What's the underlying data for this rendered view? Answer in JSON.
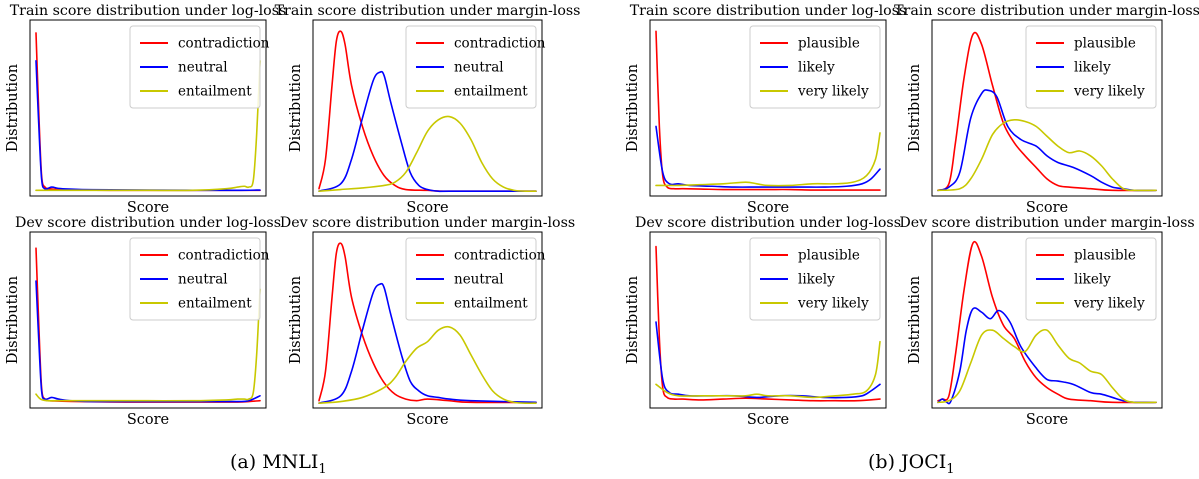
{
  "captions": {
    "a_prefix": "(a)  MNLI",
    "a_sub": "1",
    "b_prefix": "(b)  JOCI",
    "b_sub": "1"
  },
  "chart_data": [
    {
      "id": "mnli-train-log",
      "type": "line",
      "title": "Train score distribution under log-loss",
      "xlabel": "Score",
      "ylabel": "Distribution",
      "grid": false,
      "legend_position": "top-right",
      "xlim": [
        0,
        1
      ],
      "ylim": [
        0,
        1
      ],
      "series": [
        {
          "name": "contradiction",
          "color": "#ff0000",
          "x": [
            0,
            0.012,
            0.025,
            0.04,
            0.06,
            0.1,
            0.2,
            0.4,
            0.6,
            0.8,
            0.9,
            0.95,
            1.0
          ],
          "y": [
            0.97,
            0.5,
            0.1,
            0.03,
            0.02,
            0.015,
            0.012,
            0.01,
            0.01,
            0.01,
            0.01,
            0.01,
            0.01
          ]
        },
        {
          "name": "neutral",
          "color": "#0000ff",
          "x": [
            0,
            0.012,
            0.025,
            0.04,
            0.07,
            0.1,
            0.15,
            0.25,
            0.5,
            0.75,
            0.9,
            1.0
          ],
          "y": [
            0.8,
            0.42,
            0.08,
            0.02,
            0.03,
            0.022,
            0.018,
            0.014,
            0.012,
            0.01,
            0.01,
            0.012
          ]
        },
        {
          "name": "entailment",
          "color": "#c8c800",
          "x": [
            0,
            0.1,
            0.3,
            0.5,
            0.7,
            0.85,
            0.9,
            0.93,
            0.95,
            0.97,
            0.985,
            1.0
          ],
          "y": [
            0.01,
            0.01,
            0.01,
            0.01,
            0.01,
            0.02,
            0.03,
            0.035,
            0.03,
            0.07,
            0.35,
            0.8
          ]
        }
      ]
    },
    {
      "id": "mnli-train-margin",
      "type": "line",
      "title": "Train score distribution under margin-loss",
      "xlabel": "Score",
      "ylabel": "Distribution",
      "grid": false,
      "legend_position": "top-right",
      "xlim": [
        0,
        1
      ],
      "ylim": [
        0,
        1
      ],
      "series": [
        {
          "name": "contradiction",
          "color": "#ff0000",
          "x": [
            0,
            0.03,
            0.06,
            0.08,
            0.1,
            0.12,
            0.15,
            0.2,
            0.25,
            0.3,
            0.35,
            0.4,
            0.5,
            0.6,
            1.0
          ],
          "y": [
            0.02,
            0.2,
            0.65,
            0.92,
            0.98,
            0.9,
            0.65,
            0.4,
            0.22,
            0.1,
            0.04,
            0.015,
            0.01,
            0.005,
            0.005
          ]
        },
        {
          "name": "neutral",
          "color": "#0000ff",
          "x": [
            0,
            0.1,
            0.15,
            0.2,
            0.25,
            0.28,
            0.3,
            0.33,
            0.38,
            0.42,
            0.46,
            0.5,
            0.55,
            0.6,
            1.0
          ],
          "y": [
            0.005,
            0.05,
            0.2,
            0.45,
            0.68,
            0.73,
            0.71,
            0.55,
            0.3,
            0.12,
            0.04,
            0.015,
            0.005,
            0.005,
            0.005
          ]
        },
        {
          "name": "entailment",
          "color": "#c8c800",
          "x": [
            0,
            0.1,
            0.2,
            0.3,
            0.35,
            0.4,
            0.45,
            0.5,
            0.55,
            0.6,
            0.65,
            0.7,
            0.75,
            0.8,
            0.85,
            0.9,
            0.95,
            1.0
          ],
          "y": [
            0.005,
            0.015,
            0.025,
            0.04,
            0.06,
            0.12,
            0.24,
            0.37,
            0.44,
            0.46,
            0.42,
            0.32,
            0.18,
            0.08,
            0.03,
            0.01,
            0.005,
            0.005
          ]
        }
      ]
    },
    {
      "id": "mnli-dev-log",
      "type": "line",
      "title": "Dev score distribution under log-loss",
      "xlabel": "Score",
      "ylabel": "Distribution",
      "grid": false,
      "legend_position": "top-right",
      "xlim": [
        0,
        1
      ],
      "ylim": [
        0,
        1
      ],
      "series": [
        {
          "name": "contradiction",
          "color": "#ff0000",
          "x": [
            0,
            0.012,
            0.025,
            0.04,
            0.06,
            0.1,
            0.2,
            0.4,
            0.6,
            0.8,
            0.9,
            0.95,
            1.0
          ],
          "y": [
            0.95,
            0.5,
            0.1,
            0.03,
            0.02,
            0.018,
            0.015,
            0.012,
            0.012,
            0.012,
            0.012,
            0.015,
            0.02
          ]
        },
        {
          "name": "neutral",
          "color": "#0000ff",
          "x": [
            0,
            0.012,
            0.025,
            0.04,
            0.07,
            0.1,
            0.15,
            0.25,
            0.5,
            0.75,
            0.9,
            0.95,
            1.0
          ],
          "y": [
            0.75,
            0.4,
            0.08,
            0.03,
            0.04,
            0.03,
            0.02,
            0.015,
            0.015,
            0.015,
            0.015,
            0.02,
            0.05
          ]
        },
        {
          "name": "entailment",
          "color": "#c8c800",
          "x": [
            0,
            0.02,
            0.05,
            0.1,
            0.3,
            0.5,
            0.7,
            0.85,
            0.9,
            0.93,
            0.95,
            0.97,
            0.985,
            1.0
          ],
          "y": [
            0.06,
            0.03,
            0.02,
            0.02,
            0.02,
            0.02,
            0.02,
            0.025,
            0.03,
            0.03,
            0.03,
            0.07,
            0.3,
            0.7
          ]
        }
      ]
    },
    {
      "id": "mnli-dev-margin",
      "type": "line",
      "title": "Dev score distribution under margin-loss",
      "xlabel": "Score",
      "ylabel": "Distribution",
      "grid": false,
      "legend_position": "top-right",
      "xlim": [
        0,
        1
      ],
      "ylim": [
        0,
        1
      ],
      "series": [
        {
          "name": "contradiction",
          "color": "#ff0000",
          "x": [
            0,
            0.03,
            0.06,
            0.08,
            0.1,
            0.12,
            0.15,
            0.2,
            0.25,
            0.3,
            0.35,
            0.4,
            0.45,
            0.5,
            0.6,
            0.7,
            1.0
          ],
          "y": [
            0.02,
            0.2,
            0.65,
            0.92,
            0.98,
            0.9,
            0.65,
            0.42,
            0.25,
            0.13,
            0.06,
            0.03,
            0.02,
            0.03,
            0.02,
            0.01,
            0.01
          ]
        },
        {
          "name": "neutral",
          "color": "#0000ff",
          "x": [
            0,
            0.1,
            0.15,
            0.2,
            0.25,
            0.28,
            0.3,
            0.33,
            0.38,
            0.42,
            0.46,
            0.5,
            0.55,
            0.6,
            0.7,
            1.0
          ],
          "y": [
            0.005,
            0.05,
            0.2,
            0.45,
            0.68,
            0.73,
            0.71,
            0.55,
            0.3,
            0.14,
            0.08,
            0.05,
            0.04,
            0.03,
            0.02,
            0.01
          ]
        },
        {
          "name": "entailment",
          "color": "#c8c800",
          "x": [
            0,
            0.1,
            0.2,
            0.3,
            0.35,
            0.4,
            0.45,
            0.5,
            0.55,
            0.6,
            0.65,
            0.7,
            0.75,
            0.8,
            0.85,
            0.9,
            0.95,
            1.0
          ],
          "y": [
            0.005,
            0.015,
            0.04,
            0.1,
            0.16,
            0.26,
            0.34,
            0.38,
            0.45,
            0.47,
            0.42,
            0.3,
            0.18,
            0.08,
            0.03,
            0.01,
            0.005,
            0.005
          ]
        }
      ]
    },
    {
      "id": "joci-train-log",
      "type": "line",
      "title": "Train score distribution under log-loss",
      "xlabel": "Score",
      "ylabel": "Distribution",
      "grid": false,
      "legend_position": "top-right",
      "xlim": [
        0,
        1
      ],
      "ylim": [
        0,
        1
      ],
      "series": [
        {
          "name": "plausible",
          "color": "#ff0000",
          "x": [
            0,
            0.015,
            0.03,
            0.05,
            0.08,
            0.12,
            0.2,
            0.3,
            0.4,
            0.5,
            0.6,
            0.7,
            0.8,
            0.9,
            1.0
          ],
          "y": [
            0.98,
            0.4,
            0.1,
            0.03,
            0.02,
            0.02,
            0.018,
            0.015,
            0.015,
            0.015,
            0.015,
            0.012,
            0.012,
            0.012,
            0.012
          ]
        },
        {
          "name": "likely",
          "color": "#0000ff",
          "x": [
            0,
            0.03,
            0.06,
            0.1,
            0.15,
            0.25,
            0.35,
            0.45,
            0.55,
            0.65,
            0.75,
            0.85,
            0.92,
            0.96,
            1.0
          ],
          "y": [
            0.4,
            0.12,
            0.05,
            0.05,
            0.04,
            0.035,
            0.03,
            0.03,
            0.03,
            0.03,
            0.03,
            0.035,
            0.05,
            0.08,
            0.14
          ]
        },
        {
          "name": "very likely",
          "color": "#c8c800",
          "x": [
            0,
            0.05,
            0.1,
            0.2,
            0.3,
            0.4,
            0.45,
            0.5,
            0.6,
            0.7,
            0.8,
            0.88,
            0.94,
            0.98,
            1.0
          ],
          "y": [
            0.04,
            0.04,
            0.04,
            0.045,
            0.05,
            0.06,
            0.05,
            0.04,
            0.04,
            0.05,
            0.05,
            0.06,
            0.1,
            0.2,
            0.36
          ]
        }
      ]
    },
    {
      "id": "joci-train-margin",
      "type": "line",
      "title": "Train score distribution under margin-loss",
      "xlabel": "Score",
      "ylabel": "Distribution",
      "grid": false,
      "legend_position": "top-right",
      "xlim": [
        0,
        1
      ],
      "ylim": [
        0,
        1
      ],
      "series": [
        {
          "name": "plausible",
          "color": "#ff0000",
          "x": [
            0,
            0.05,
            0.08,
            0.12,
            0.16,
            0.2,
            0.25,
            0.3,
            0.35,
            0.4,
            0.45,
            0.5,
            0.55,
            0.6,
            0.7,
            0.8,
            1.0
          ],
          "y": [
            0.01,
            0.05,
            0.3,
            0.7,
            0.96,
            0.9,
            0.65,
            0.42,
            0.3,
            0.22,
            0.15,
            0.08,
            0.04,
            0.03,
            0.02,
            0.01,
            0.01
          ]
        },
        {
          "name": "likely",
          "color": "#0000ff",
          "x": [
            0,
            0.05,
            0.1,
            0.15,
            0.2,
            0.23,
            0.27,
            0.32,
            0.38,
            0.45,
            0.5,
            0.55,
            0.62,
            0.7,
            0.75,
            0.8,
            0.85,
            0.9,
            1.0
          ],
          "y": [
            0.01,
            0.03,
            0.12,
            0.45,
            0.6,
            0.62,
            0.58,
            0.4,
            0.32,
            0.28,
            0.22,
            0.18,
            0.15,
            0.1,
            0.06,
            0.03,
            0.02,
            0.01,
            0.01
          ]
        },
        {
          "name": "very likely",
          "color": "#c8c800",
          "x": [
            0,
            0.1,
            0.15,
            0.2,
            0.25,
            0.3,
            0.35,
            0.4,
            0.45,
            0.5,
            0.55,
            0.6,
            0.65,
            0.7,
            0.75,
            0.8,
            0.85,
            0.9,
            1.0
          ],
          "y": [
            0.01,
            0.02,
            0.08,
            0.2,
            0.35,
            0.42,
            0.44,
            0.43,
            0.4,
            0.34,
            0.28,
            0.24,
            0.25,
            0.22,
            0.16,
            0.08,
            0.02,
            0.01,
            0.01
          ]
        }
      ]
    },
    {
      "id": "joci-dev-log",
      "type": "line",
      "title": "Dev score distribution under log-loss",
      "xlabel": "Score",
      "ylabel": "Distribution",
      "grid": false,
      "legend_position": "top-right",
      "xlim": [
        0,
        1
      ],
      "ylim": [
        0,
        1
      ],
      "series": [
        {
          "name": "plausible",
          "color": "#ff0000",
          "x": [
            0,
            0.015,
            0.03,
            0.05,
            0.08,
            0.12,
            0.2,
            0.3,
            0.4,
            0.5,
            0.6,
            0.7,
            0.8,
            0.9,
            1.0
          ],
          "y": [
            0.96,
            0.4,
            0.1,
            0.04,
            0.03,
            0.03,
            0.025,
            0.03,
            0.035,
            0.03,
            0.025,
            0.02,
            0.02,
            0.02,
            0.03
          ]
        },
        {
          "name": "likely",
          "color": "#0000ff",
          "x": [
            0,
            0.03,
            0.06,
            0.1,
            0.15,
            0.25,
            0.35,
            0.45,
            0.55,
            0.65,
            0.75,
            0.85,
            0.92,
            0.96,
            1.0
          ],
          "y": [
            0.5,
            0.15,
            0.07,
            0.06,
            0.05,
            0.05,
            0.05,
            0.04,
            0.05,
            0.05,
            0.04,
            0.04,
            0.05,
            0.08,
            0.12
          ]
        },
        {
          "name": "very likely",
          "color": "#c8c800",
          "x": [
            0,
            0.05,
            0.1,
            0.2,
            0.3,
            0.4,
            0.45,
            0.5,
            0.6,
            0.7,
            0.8,
            0.88,
            0.94,
            0.98,
            1.0
          ],
          "y": [
            0.12,
            0.07,
            0.05,
            0.05,
            0.05,
            0.05,
            0.06,
            0.05,
            0.05,
            0.04,
            0.05,
            0.06,
            0.08,
            0.18,
            0.38
          ]
        }
      ]
    },
    {
      "id": "joci-dev-margin",
      "type": "line",
      "title": "Dev score distribution under margin-loss",
      "xlabel": "Score",
      "ylabel": "Distribution",
      "grid": false,
      "legend_position": "top-right",
      "xlim": [
        0,
        1
      ],
      "ylim": [
        0,
        1
      ],
      "series": [
        {
          "name": "plausible",
          "color": "#ff0000",
          "x": [
            0,
            0.02,
            0.05,
            0.08,
            0.12,
            0.16,
            0.2,
            0.25,
            0.3,
            0.35,
            0.4,
            0.45,
            0.5,
            0.55,
            0.6,
            0.7,
            0.8,
            1.0
          ],
          "y": [
            0.02,
            0.03,
            0.05,
            0.3,
            0.7,
            0.98,
            0.9,
            0.65,
            0.48,
            0.4,
            0.26,
            0.16,
            0.1,
            0.06,
            0.03,
            0.02,
            0.01,
            0.01
          ]
        },
        {
          "name": "likely",
          "color": "#0000ff",
          "x": [
            0,
            0.02,
            0.04,
            0.06,
            0.1,
            0.13,
            0.16,
            0.2,
            0.24,
            0.28,
            0.33,
            0.38,
            0.45,
            0.5,
            0.55,
            0.62,
            0.7,
            0.75,
            0.8,
            0.85,
            0.9,
            1.0
          ],
          "y": [
            0.01,
            0.03,
            0.01,
            0.02,
            0.2,
            0.45,
            0.58,
            0.56,
            0.52,
            0.57,
            0.5,
            0.35,
            0.22,
            0.15,
            0.14,
            0.12,
            0.07,
            0.06,
            0.04,
            0.02,
            0.01,
            0.01
          ]
        },
        {
          "name": "very likely",
          "color": "#c8c800",
          "x": [
            0,
            0.05,
            0.1,
            0.15,
            0.2,
            0.25,
            0.3,
            0.35,
            0.4,
            0.45,
            0.5,
            0.55,
            0.6,
            0.65,
            0.7,
            0.75,
            0.8,
            0.85,
            0.9,
            1.0
          ],
          "y": [
            0.01,
            0.02,
            0.08,
            0.25,
            0.42,
            0.45,
            0.4,
            0.35,
            0.32,
            0.42,
            0.45,
            0.36,
            0.28,
            0.25,
            0.2,
            0.18,
            0.1,
            0.03,
            0.01,
            0.01
          ]
        }
      ]
    }
  ]
}
